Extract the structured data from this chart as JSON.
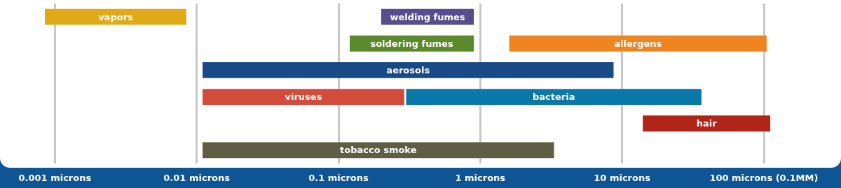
{
  "chart_data": {
    "type": "bar",
    "orientation": "horizontal",
    "log": "x",
    "grid": "x",
    "legend": false,
    "categories": [
      null,
      null,
      null,
      null,
      null,
      null
    ],
    "xlim": [
      0.00041,
      350
    ],
    "xticks": [
      {
        "value": 0.001,
        "label": "0.001 microns"
      },
      {
        "value": 0.01,
        "label": "0.01 microns"
      },
      {
        "value": 0.1,
        "label": "0.1 microns"
      },
      {
        "value": 1,
        "label": "1 microns"
      },
      {
        "value": 10,
        "label": "10 microns"
      },
      {
        "value": 100,
        "label": "100 microns (0.1MM)"
      }
    ],
    "series": [
      {
        "name": "vapors",
        "color": "#e0a917",
        "base": [
          0.00085,
          null,
          null,
          null,
          null,
          null
        ],
        "values": [
          0.0076,
          null,
          null,
          null,
          null,
          null
        ]
      },
      {
        "name": "welding fumes",
        "color": "#574d8c",
        "base": [
          0.2,
          null,
          null,
          null,
          null,
          null
        ],
        "values": [
          0.7,
          null,
          null,
          null,
          null,
          null
        ]
      },
      {
        "name": "soldering fumes",
        "color": "#5a8a2b",
        "base": [
          null,
          0.12,
          null,
          null,
          null,
          null
        ],
        "values": [
          null,
          0.78,
          null,
          null,
          null,
          null
        ]
      },
      {
        "name": "allergens",
        "color": "#f08421",
        "base": [
          null,
          1.6,
          null,
          null,
          null,
          null
        ],
        "values": [
          null,
          103,
          null,
          null,
          null,
          null
        ]
      },
      {
        "name": "aerosols",
        "color": "#1a4a86",
        "base": [
          null,
          null,
          0.011,
          null,
          null,
          null
        ],
        "values": [
          null,
          null,
          8.7,
          null,
          null,
          null
        ]
      },
      {
        "name": "viruses",
        "color": "#d24b3b",
        "base": [
          null,
          null,
          null,
          0.011,
          null,
          null
        ],
        "values": [
          null,
          null,
          null,
          0.28,
          null,
          null
        ]
      },
      {
        "name": "bacteria",
        "color": "#0a78a8",
        "base": [
          null,
          null,
          null,
          0.3,
          null,
          null
        ],
        "values": [
          null,
          null,
          null,
          36,
          null,
          null
        ]
      },
      {
        "name": "hair",
        "color": "#b22418",
        "base": [
          null,
          null,
          null,
          null,
          14,
          null
        ],
        "values": [
          null,
          null,
          null,
          null,
          97,
          null
        ]
      },
      {
        "name": "tobacco smoke",
        "color": "#5f5e45",
        "base": [
          null,
          null,
          null,
          null,
          null,
          0.011
        ],
        "values": [
          null,
          null,
          null,
          null,
          null,
          3.3
        ]
      }
    ]
  }
}
